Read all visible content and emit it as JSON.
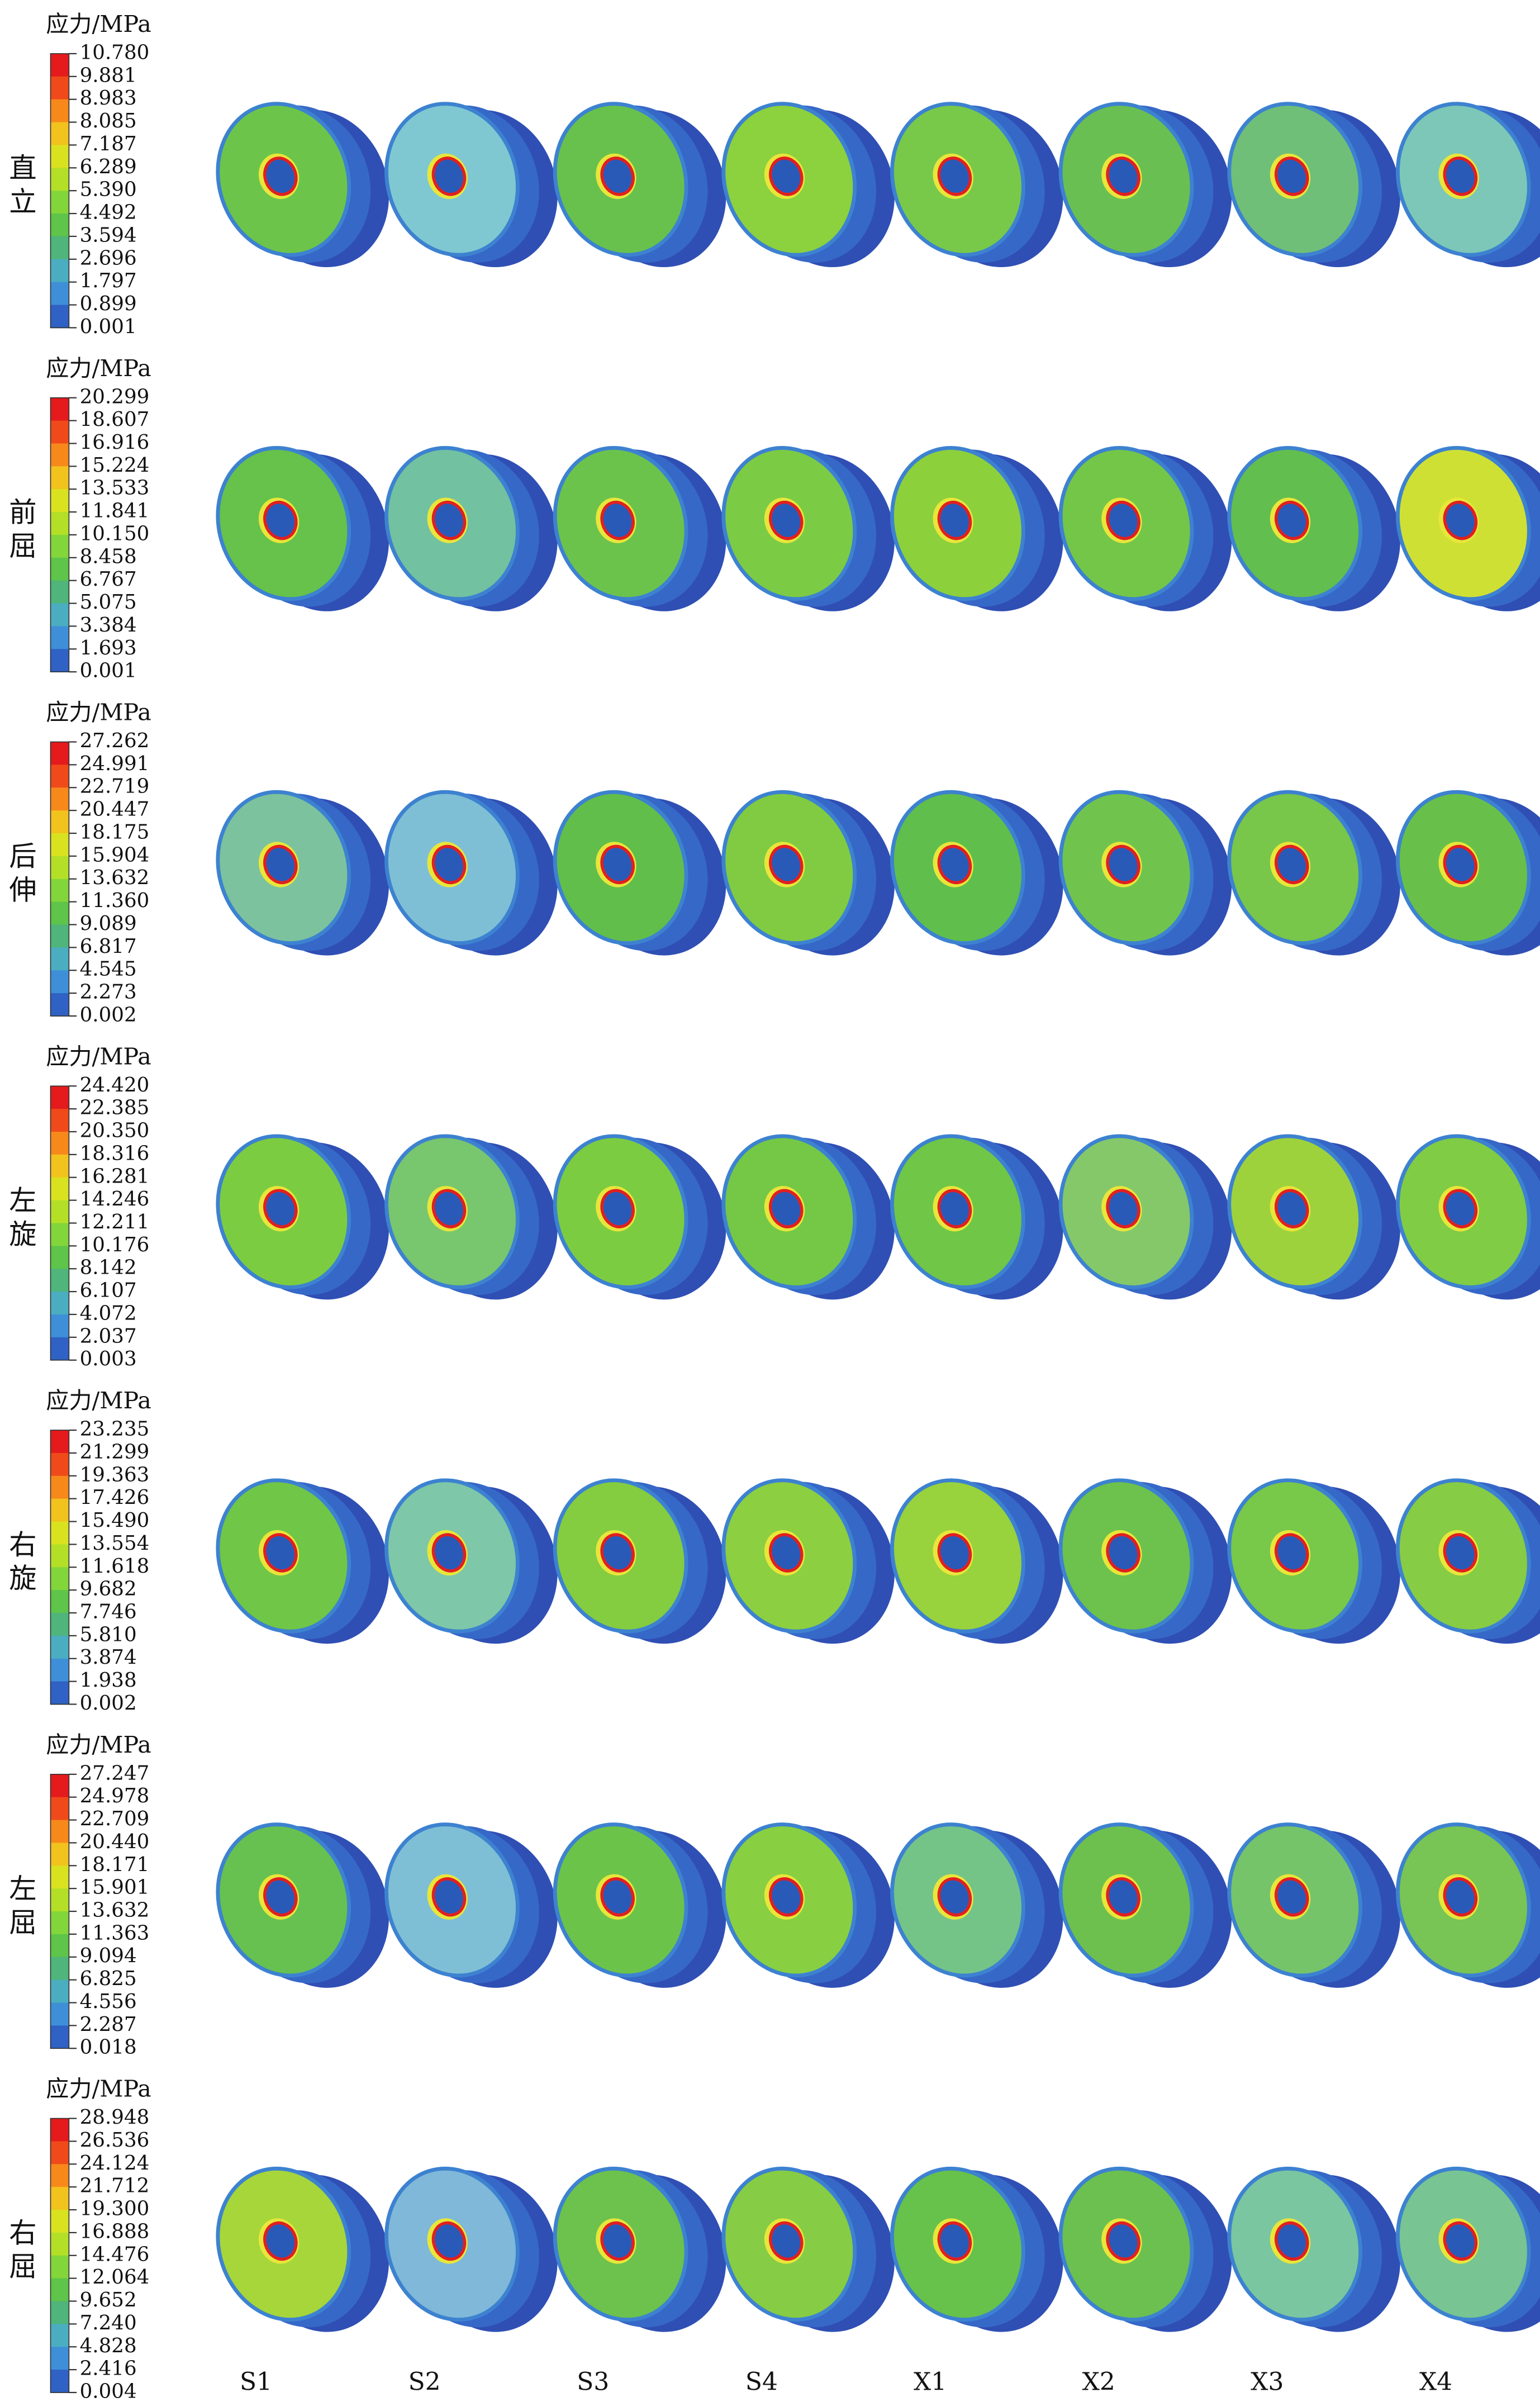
{
  "legend_title": "应力/MPa",
  "rows": [
    {
      "label": "直立",
      "legend": [
        "10.780",
        "9.881",
        "8.983",
        "8.085",
        "7.187",
        "6.289",
        "5.390",
        "4.492",
        "3.594",
        "2.696",
        "1.797",
        "0.899",
        "0.001"
      ]
    },
    {
      "label": "前屈",
      "legend": [
        "20.299",
        "18.607",
        "16.916",
        "15.224",
        "13.533",
        "11.841",
        "10.150",
        "8.458",
        "6.767",
        "5.075",
        "3.384",
        "1.693",
        "0.001"
      ]
    },
    {
      "label": "后伸",
      "legend": [
        "27.262",
        "24.991",
        "22.719",
        "20.447",
        "18.175",
        "15.904",
        "13.632",
        "11.360",
        "9.089",
        "6.817",
        "4.545",
        "2.273",
        "0.002"
      ]
    },
    {
      "label": "左旋",
      "legend": [
        "24.420",
        "22.385",
        "20.350",
        "18.316",
        "16.281",
        "14.246",
        "12.211",
        "10.176",
        "8.142",
        "6.107",
        "4.072",
        "2.037",
        "0.003"
      ]
    },
    {
      "label": "右旋",
      "legend": [
        "23.235",
        "21.299",
        "19.363",
        "17.426",
        "15.490",
        "13.554",
        "11.618",
        "9.682",
        "7.746",
        "5.810",
        "3.874",
        "1.938",
        "0.002"
      ]
    },
    {
      "label": "左屈",
      "legend": [
        "27.247",
        "24.978",
        "22.709",
        "20.440",
        "18.171",
        "15.901",
        "13.632",
        "11.363",
        "9.094",
        "6.825",
        "4.556",
        "2.287",
        "0.018"
      ]
    },
    {
      "label": "右屈",
      "legend": [
        "28.948",
        "26.536",
        "24.124",
        "21.712",
        "19.300",
        "16.888",
        "14.476",
        "12.064",
        "9.652",
        "7.240",
        "4.828",
        "2.416",
        "0.004"
      ]
    }
  ],
  "columns": [
    "S1",
    "S2",
    "S3",
    "S4",
    "X1",
    "X2",
    "X3",
    "X4"
  ]
}
